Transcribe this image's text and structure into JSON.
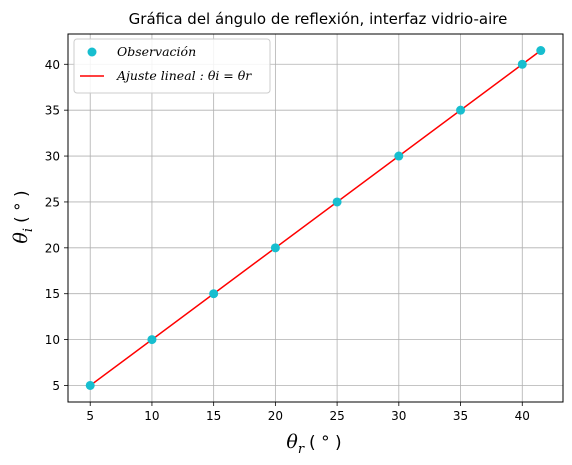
{
  "chart_data": {
    "type": "scatter",
    "title": "Gráfica del ángulo de reflexión, interfaz vidrio-aire",
    "xlabel": {
      "symbol": "θ",
      "sub": "r",
      "unit": "( ° )"
    },
    "ylabel": {
      "symbol": "θ",
      "sub": "i",
      "unit": "( ° )"
    },
    "xlim": [
      3.2,
      43.3
    ],
    "ylim": [
      3.2,
      43.3
    ],
    "xticks": [
      5,
      10,
      15,
      20,
      25,
      30,
      35,
      40
    ],
    "yticks": [
      5,
      10,
      15,
      20,
      25,
      30,
      35,
      40
    ],
    "grid": true,
    "legend_position": "top-left",
    "series": [
      {
        "name": "Observación",
        "kind": "scatter",
        "color": "#17becf",
        "x": [
          5,
          10,
          15,
          20,
          25,
          30,
          35,
          40,
          41.5
        ],
        "y": [
          5,
          10,
          15,
          20,
          25,
          30,
          35,
          40,
          41.5
        ]
      },
      {
        "name": "Ajuste lineal : θi = θr",
        "kind": "line",
        "color": "#ff0000",
        "x": [
          5,
          41.5
        ],
        "y": [
          5,
          41.5
        ]
      }
    ]
  }
}
